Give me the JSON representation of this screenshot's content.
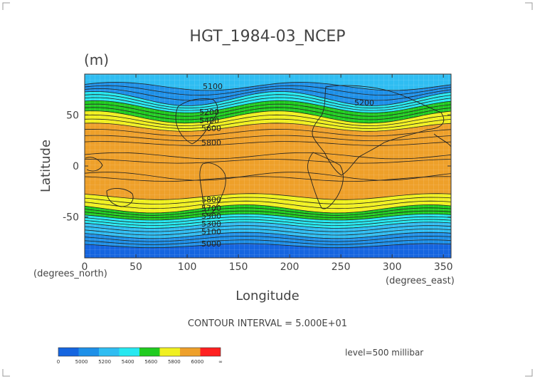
{
  "chart_data": {
    "type": "heatmap",
    "title": "HGT_1984-03_NCEP",
    "units": "(m)",
    "xlabel": "Longitude",
    "ylabel": "Latitude",
    "x_units": "(degrees_east)",
    "y_units": "(degrees_north)",
    "xlim": [
      0,
      357.5
    ],
    "ylim": [
      -90,
      90
    ],
    "xticks": [
      0,
      50,
      100,
      150,
      200,
      250,
      300,
      350
    ],
    "yticks": [
      -50,
      0,
      50
    ],
    "contour_interval_text": "CONTOUR INTERVAL = 5.000E+01",
    "level_text": "level=500 millibar",
    "contour_labels": [
      "5100",
      "5200",
      "5300",
      "5400",
      "5500",
      "5600",
      "5700",
      "5800",
      "5000"
    ],
    "color_levels": [
      {
        "label": "0",
        "color": "#1565e0"
      },
      {
        "label": "5000",
        "color": "#1e90e8"
      },
      {
        "label": "5200",
        "color": "#2fbdf2"
      },
      {
        "label": "5400",
        "color": "#26e8f0"
      },
      {
        "label": "5600",
        "color": "#20cc20"
      },
      {
        "label": "5800",
        "color": "#f0f020"
      },
      {
        "label": "6000",
        "color": "#eea02a"
      },
      {
        "label": "∞",
        "color": "#ff2020"
      }
    ],
    "colorbar_ticks": [
      "0",
      "5000",
      "5200",
      "5400",
      "5600",
      "5800",
      "6000",
      "∞"
    ],
    "grid": true
  }
}
